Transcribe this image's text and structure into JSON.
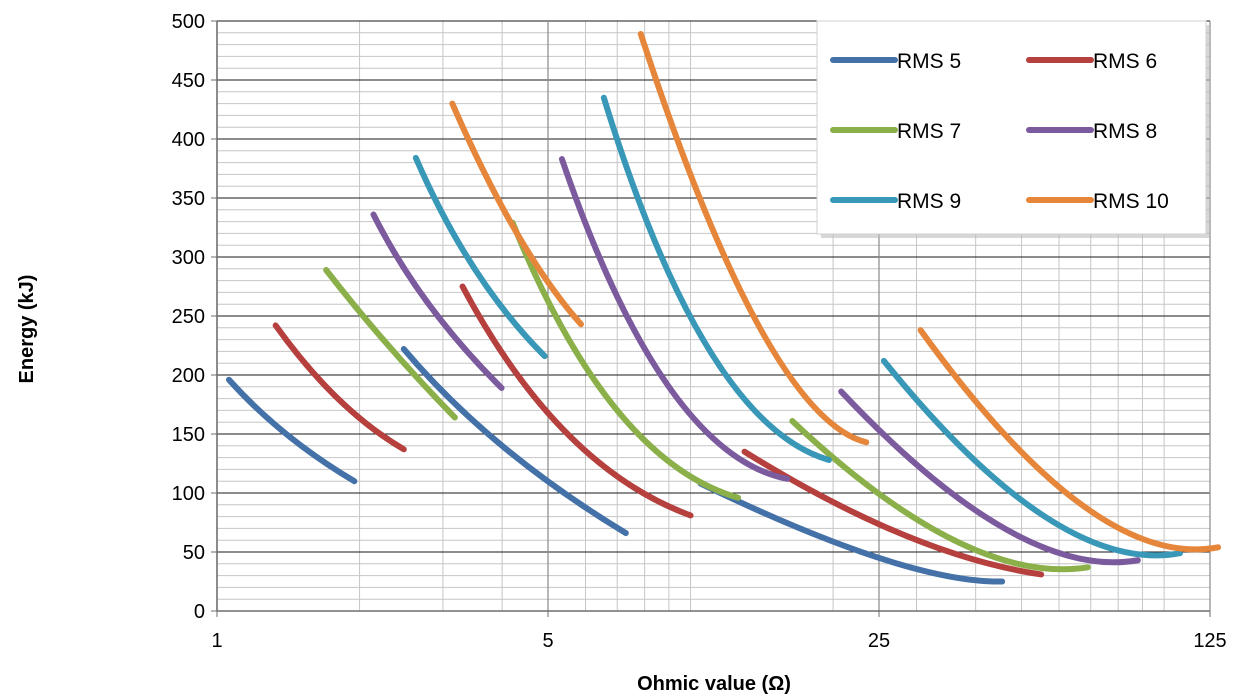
{
  "chart_data": {
    "type": "line",
    "title": "",
    "xlabel": "Ohmic value (Ω)",
    "ylabel": "Energy (kJ)",
    "x_scale": "log",
    "xlim": [
      1,
      125
    ],
    "ylim": [
      0,
      500
    ],
    "x_ticks": [
      1,
      5,
      25,
      125
    ],
    "x_tick_labels": [
      "1",
      "5",
      "25",
      "125"
    ],
    "y_ticks": [
      0,
      50,
      100,
      150,
      200,
      250,
      300,
      350,
      400,
      450,
      500
    ],
    "y_tick_labels": [
      "0",
      "50",
      "100",
      "150",
      "200",
      "250",
      "300",
      "350",
      "400",
      "450",
      "500"
    ],
    "grid": true,
    "legend_position": "top-right",
    "series": [
      {
        "name": "RMS 5",
        "color": "#4472A8",
        "segments": [
          [
            [
              1.06,
              196
            ],
            [
              1.4,
              150
            ],
            [
              1.95,
              110
            ]
          ],
          [
            [
              2.48,
              222
            ],
            [
              4.0,
              140
            ],
            [
              7.3,
              66
            ]
          ],
          [
            [
              10.5,
              108
            ],
            [
              25,
              45
            ],
            [
              45.5,
              25
            ]
          ]
        ]
      },
      {
        "name": "RMS 6",
        "color": "#B5403D",
        "segments": [
          [
            [
              1.33,
              242
            ],
            [
              1.8,
              180
            ],
            [
              2.48,
              137
            ]
          ],
          [
            [
              3.3,
              275
            ],
            [
              5.5,
              150
            ],
            [
              10.0,
              81
            ]
          ],
          [
            [
              13.0,
              135
            ],
            [
              28,
              65
            ],
            [
              55,
              31
            ]
          ]
        ]
      },
      {
        "name": "RMS 7",
        "color": "#8BB04A",
        "segments": [
          [
            [
              1.7,
              289
            ],
            [
              2.3,
              225
            ],
            [
              3.18,
              164
            ]
          ],
          [
            [
              4.21,
              329
            ],
            [
              7,
              170
            ],
            [
              12.6,
              96
            ]
          ],
          [
            [
              16.4,
              161
            ],
            [
              36,
              60
            ],
            [
              69,
              37
            ]
          ]
        ]
      },
      {
        "name": "RMS 8",
        "color": "#7B5A9E",
        "segments": [
          [
            [
              2.14,
              336
            ],
            [
              2.8,
              260
            ],
            [
              3.99,
              189
            ]
          ],
          [
            [
              5.35,
              383
            ],
            [
              9,
              190
            ],
            [
              16.0,
              112
            ]
          ],
          [
            [
              20.8,
              186
            ],
            [
              46,
              70
            ],
            [
              88,
              43
            ]
          ]
        ]
      },
      {
        "name": "RMS 9",
        "color": "#3998B7",
        "segments": [
          [
            [
              2.63,
              384
            ],
            [
              3.5,
              290
            ],
            [
              4.92,
              216
            ]
          ],
          [
            [
              6.56,
              435
            ],
            [
              11,
              220
            ],
            [
              19.6,
              128
            ]
          ],
          [
            [
              25.6,
              212
            ],
            [
              56,
              80
            ],
            [
              108,
              49
            ]
          ]
        ]
      },
      {
        "name": "RMS 10",
        "color": "#E5863B",
        "segments": [
          [
            [
              3.14,
              430
            ],
            [
              4.3,
              320
            ],
            [
              5.87,
              243
            ]
          ],
          [
            [
              7.85,
              489
            ],
            [
              14,
              240
            ],
            [
              23.5,
              143
            ]
          ],
          [
            [
              30.6,
              238
            ],
            [
              67,
              90
            ],
            [
              130,
              54
            ]
          ]
        ]
      }
    ]
  }
}
